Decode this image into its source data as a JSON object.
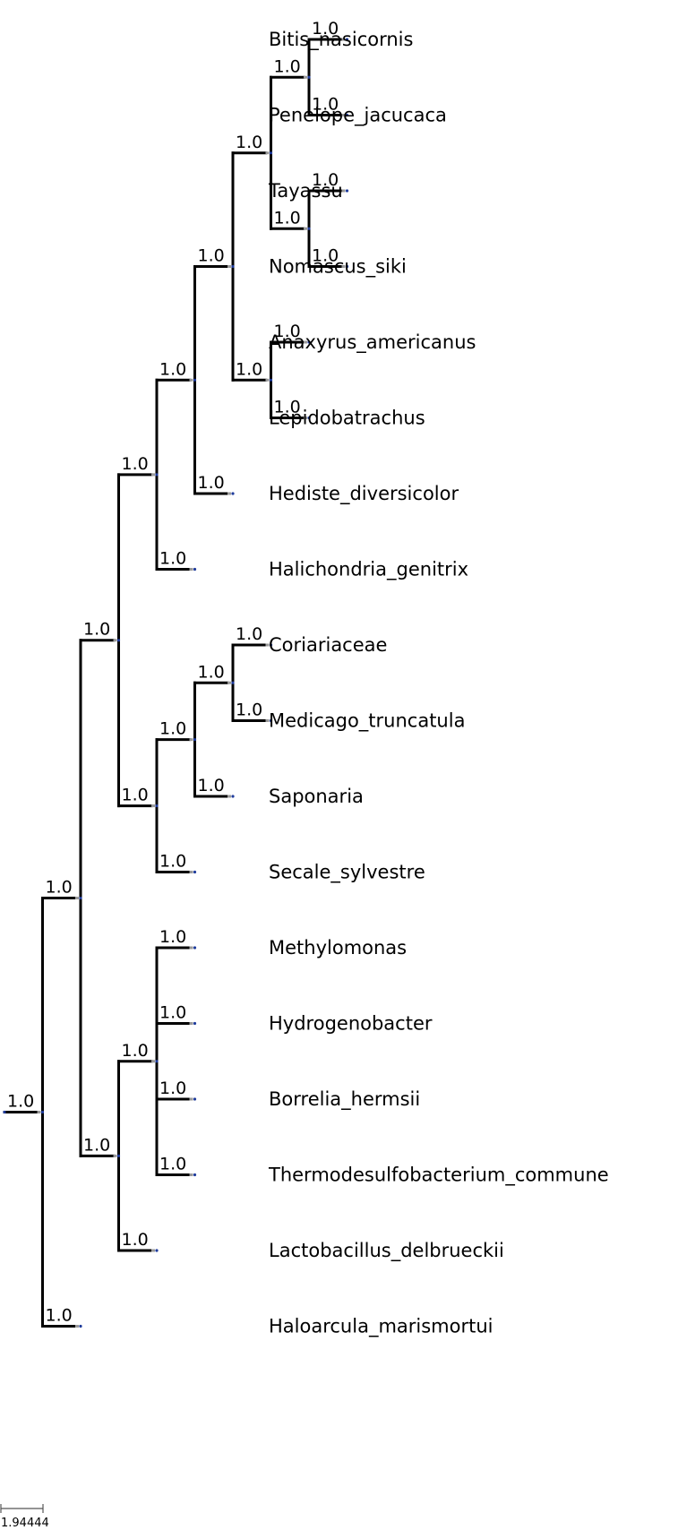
{
  "tree": {
    "format": "phylogram",
    "support_value_all_nodes": "1.0",
    "newick": "(((((((((Bitis_nasicornis,Penelope_jacucaca),(Tayassu,Nomascus_siki)),(Anaxyrus_americanus,Lepidobatrachus)),Hediste_diversicolor),Halichondria_genitrix),(((Coriariaceae,Medicago_truncatula),Saponaria),Secale_sylvestre)),((Methylomonas,Hydrogenobacter,Borrelia_hermsii,Thermodesulfobacterium_commune),Lactobacillus_delbrueckii)),Haloarcula_marismortui)",
    "leaves": [
      "Bitis_nasicornis",
      "Penelope_jacucaca",
      "Tayassu",
      "Nomascus_siki",
      "Anaxyrus_americanus",
      "Lepidobatrachus",
      "Hediste_diversicolor",
      "Halichondria_genitrix",
      "Coriariaceae",
      "Medicago_truncatula",
      "Saponaria",
      "Secale_sylvestre",
      "Methylomonas",
      "Hydrogenobacter",
      "Borrelia_hermsii",
      "Thermodesulfobacterium_commune",
      "Lactobacillus_delbrueckii",
      "Haloarcula_marismortui"
    ]
  },
  "scale_bar": {
    "label": "1.94444"
  },
  "colors": {
    "branch": "#000000",
    "node_dot": "#1f3c9c",
    "edge_end": "#9a9a9a"
  }
}
